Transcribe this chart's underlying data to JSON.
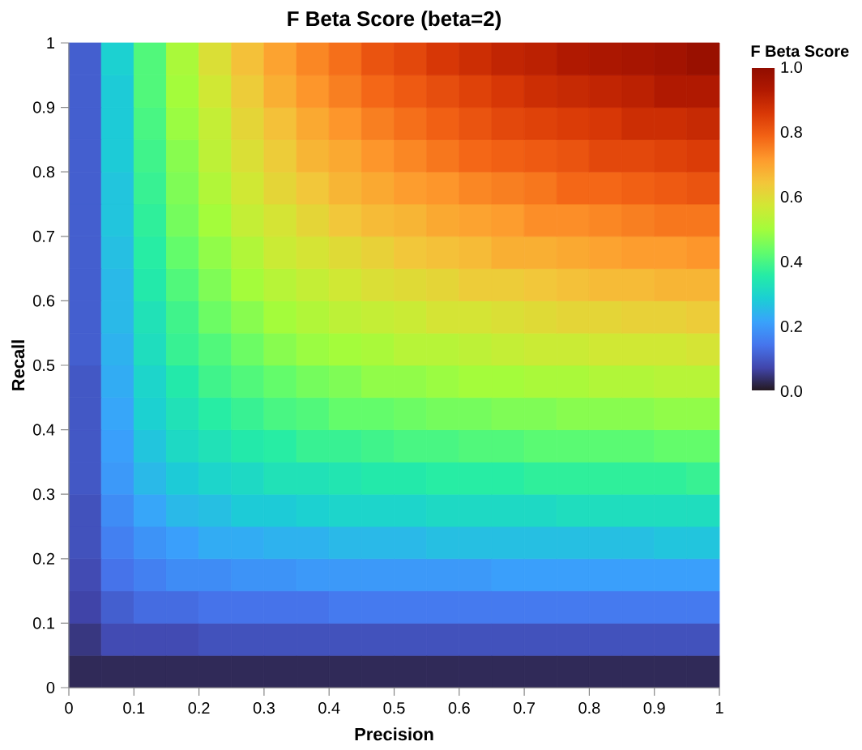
{
  "chart_data": {
    "type": "heatmap",
    "title": "F Beta Score (beta=2)",
    "xlabel": "Precision",
    "ylabel": "Recall",
    "clabel": "F Beta Score",
    "x": [
      0.025,
      0.075,
      0.125,
      0.175,
      0.225,
      0.275,
      0.325,
      0.375,
      0.425,
      0.475,
      0.525,
      0.575,
      0.625,
      0.675,
      0.725,
      0.775,
      0.825,
      0.875,
      0.925,
      0.975
    ],
    "y": [
      0.975,
      0.925,
      0.875,
      0.825,
      0.775,
      0.725,
      0.675,
      0.625,
      0.575,
      0.525,
      0.475,
      0.425,
      0.375,
      0.325,
      0.275,
      0.225,
      0.175,
      0.125,
      0.075,
      0.025
    ],
    "xlim": [
      0,
      1
    ],
    "xticks": [
      0,
      0.1,
      0.2,
      0.3,
      0.4,
      0.5,
      0.6,
      0.7,
      0.8,
      0.9,
      1
    ],
    "ylim": [
      0,
      1
    ],
    "yticks": [
      0,
      0.1,
      0.2,
      0.3,
      0.4,
      0.5,
      0.6,
      0.7,
      0.8,
      0.9,
      1
    ],
    "clim": [
      0,
      1
    ],
    "cticks": [
      {
        "value": 0,
        "label": "0.0"
      },
      {
        "value": 0.2,
        "label": "0.2"
      },
      {
        "value": 0.4,
        "label": "0.4"
      },
      {
        "value": 0.6,
        "label": "0.6"
      },
      {
        "value": 0.8,
        "label": "0.8"
      },
      {
        "value": 1,
        "label": "1.0"
      }
    ],
    "cells": [
      [
        0.11,
        0.29,
        0.41,
        0.51,
        0.59,
        0.65,
        0.7,
        0.74,
        0.77,
        0.81,
        0.83,
        0.86,
        0.88,
        0.9,
        0.91,
        0.93,
        0.94,
        0.95,
        0.96,
        0.98
      ],
      [
        0.11,
        0.28,
        0.41,
        0.5,
        0.57,
        0.63,
        0.68,
        0.72,
        0.75,
        0.78,
        0.8,
        0.82,
        0.84,
        0.86,
        0.88,
        0.89,
        0.9,
        0.91,
        0.93,
        0.93
      ],
      [
        0.11,
        0.28,
        0.4,
        0.49,
        0.55,
        0.61,
        0.65,
        0.69,
        0.72,
        0.75,
        0.77,
        0.79,
        0.81,
        0.83,
        0.84,
        0.85,
        0.86,
        0.88,
        0.88,
        0.89
      ],
      [
        0.11,
        0.28,
        0.39,
        0.47,
        0.54,
        0.59,
        0.63,
        0.67,
        0.69,
        0.72,
        0.74,
        0.76,
        0.78,
        0.79,
        0.8,
        0.81,
        0.83,
        0.83,
        0.84,
        0.85
      ],
      [
        0.11,
        0.27,
        0.38,
        0.46,
        0.52,
        0.57,
        0.61,
        0.64,
        0.67,
        0.69,
        0.71,
        0.72,
        0.74,
        0.75,
        0.76,
        0.78,
        0.78,
        0.79,
        0.8,
        0.81
      ],
      [
        0.11,
        0.27,
        0.37,
        0.45,
        0.5,
        0.55,
        0.58,
        0.61,
        0.64,
        0.66,
        0.67,
        0.69,
        0.7,
        0.71,
        0.73,
        0.73,
        0.74,
        0.75,
        0.76,
        0.76
      ],
      [
        0.11,
        0.26,
        0.36,
        0.43,
        0.48,
        0.52,
        0.56,
        0.58,
        0.6,
        0.62,
        0.64,
        0.65,
        0.66,
        0.68,
        0.68,
        0.69,
        0.7,
        0.71,
        0.71,
        0.72
      ],
      [
        0.11,
        0.25,
        0.35,
        0.41,
        0.46,
        0.5,
        0.53,
        0.55,
        0.57,
        0.59,
        0.6,
        0.61,
        0.63,
        0.63,
        0.64,
        0.65,
        0.66,
        0.66,
        0.67,
        0.67
      ],
      [
        0.11,
        0.25,
        0.33,
        0.39,
        0.44,
        0.47,
        0.5,
        0.52,
        0.54,
        0.55,
        0.56,
        0.58,
        0.58,
        0.59,
        0.6,
        0.61,
        0.61,
        0.62,
        0.62,
        0.63
      ],
      [
        0.11,
        0.24,
        0.32,
        0.38,
        0.41,
        0.44,
        0.47,
        0.49,
        0.5,
        0.51,
        0.53,
        0.53,
        0.54,
        0.55,
        0.56,
        0.56,
        0.57,
        0.57,
        0.57,
        0.58
      ],
      [
        0.1,
        0.23,
        0.3,
        0.35,
        0.39,
        0.41,
        0.43,
        0.45,
        0.46,
        0.48,
        0.48,
        0.49,
        0.5,
        0.5,
        0.51,
        0.51,
        0.52,
        0.52,
        0.53,
        0.53
      ],
      [
        0.1,
        0.22,
        0.29,
        0.33,
        0.36,
        0.38,
        0.4,
        0.41,
        0.43,
        0.43,
        0.44,
        0.45,
        0.45,
        0.46,
        0.46,
        0.47,
        0.47,
        0.47,
        0.48,
        0.48
      ],
      [
        0.1,
        0.21,
        0.27,
        0.31,
        0.33,
        0.35,
        0.36,
        0.38,
        0.38,
        0.39,
        0.4,
        0.4,
        0.41,
        0.41,
        0.42,
        0.42,
        0.42,
        0.42,
        0.43,
        0.43
      ],
      [
        0.1,
        0.2,
        0.25,
        0.28,
        0.3,
        0.31,
        0.33,
        0.33,
        0.34,
        0.35,
        0.35,
        0.36,
        0.36,
        0.36,
        0.37,
        0.37,
        0.37,
        0.37,
        0.37,
        0.38
      ],
      [
        0.09,
        0.18,
        0.22,
        0.25,
        0.26,
        0.28,
        0.28,
        0.29,
        0.3,
        0.3,
        0.3,
        0.31,
        0.31,
        0.31,
        0.31,
        0.32,
        0.32,
        0.32,
        0.32,
        0.32
      ],
      [
        0.09,
        0.16,
        0.19,
        0.21,
        0.23,
        0.23,
        0.24,
        0.24,
        0.25,
        0.25,
        0.25,
        0.26,
        0.26,
        0.26,
        0.26,
        0.26,
        0.26,
        0.26,
        0.27,
        0.27
      ],
      [
        0.08,
        0.14,
        0.16,
        0.18,
        0.18,
        0.19,
        0.19,
        0.2,
        0.2,
        0.2,
        0.2,
        0.2,
        0.2,
        0.21,
        0.21,
        0.21,
        0.21,
        0.21,
        0.21,
        0.21
      ],
      [
        0.07,
        0.11,
        0.13,
        0.13,
        0.14,
        0.14,
        0.14,
        0.14,
        0.15,
        0.15,
        0.15,
        0.15,
        0.15,
        0.15,
        0.15,
        0.15,
        0.15,
        0.15,
        0.15,
        0.15
      ],
      [
        0.05,
        0.08,
        0.08,
        0.08,
        0.09,
        0.09,
        0.09,
        0.09,
        0.09,
        0.09,
        0.09,
        0.09,
        0.09,
        0.09,
        0.09,
        0.09,
        0.09,
        0.09,
        0.09,
        0.09
      ],
      [
        0.03,
        0.03,
        0.03,
        0.03,
        0.03,
        0.03,
        0.03,
        0.03,
        0.03,
        0.03,
        0.03,
        0.03,
        0.03,
        0.03,
        0.03,
        0.03,
        0.03,
        0.03,
        0.03,
        0.03
      ]
    ]
  }
}
